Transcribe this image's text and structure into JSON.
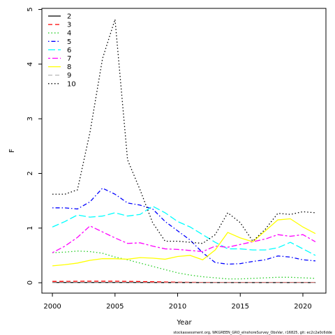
{
  "chart_data": {
    "type": "line",
    "x_label": "Year",
    "y_label": "F",
    "footer": "stockassessment.org, WKGREEN_GRO_eInshoreSurvey_ObsVar, r16825, git: ec2c2a0c6dde",
    "x": [
      2000,
      2001,
      2002,
      2003,
      2004,
      2005,
      2006,
      2007,
      2008,
      2009,
      2010,
      2011,
      2012,
      2013,
      2014,
      2015,
      2016,
      2017,
      2018,
      2019,
      2020,
      2021
    ],
    "xlim": [
      1999.16,
      2021.84
    ],
    "xticks": [
      2000,
      2005,
      2010,
      2015,
      2020
    ],
    "ylim": [
      -0.19,
      5.02
    ],
    "yticks": [
      0,
      1,
      2,
      3,
      4,
      5
    ],
    "legend": "top-left",
    "series": [
      {
        "name": "2",
        "color": "#000000",
        "dash": "",
        "values": [
          0.005,
          0.005,
          0.005,
          0.005,
          0.005,
          0.005,
          0.005,
          0.005,
          0.005,
          0.004,
          0.004,
          0.004,
          0.003,
          0.003,
          0.003,
          0.003,
          0.003,
          0.003,
          0.003,
          0.003,
          0.003,
          0.003
        ]
      },
      {
        "name": "3",
        "color": "#ff0000",
        "dash": "6,4",
        "values": [
          0.025,
          0.025,
          0.027,
          0.028,
          0.028,
          0.028,
          0.025,
          0.022,
          0.018,
          0.014,
          0.01,
          0.008,
          0.006,
          0.005,
          0.005,
          0.005,
          0.005,
          0.005,
          0.005,
          0.005,
          0.005,
          0.005
        ]
      },
      {
        "name": "4",
        "color": "#22cc22",
        "dash": "1.5,3",
        "values": [
          0.55,
          0.56,
          0.58,
          0.57,
          0.54,
          0.47,
          0.42,
          0.36,
          0.3,
          0.24,
          0.18,
          0.14,
          0.11,
          0.09,
          0.07,
          0.07,
          0.08,
          0.09,
          0.1,
          0.1,
          0.09,
          0.08
        ]
      },
      {
        "name": "5",
        "color": "#0000ff",
        "dash": "1.5,3,6,3",
        "values": [
          1.37,
          1.37,
          1.35,
          1.48,
          1.73,
          1.62,
          1.46,
          1.42,
          1.35,
          1.12,
          0.95,
          0.78,
          0.55,
          0.37,
          0.34,
          0.35,
          0.39,
          0.42,
          0.49,
          0.47,
          0.42,
          0.4
        ]
      },
      {
        "name": "6",
        "color": "#00ffff",
        "dash": "10,4",
        "values": [
          1.02,
          1.12,
          1.24,
          1.2,
          1.22,
          1.28,
          1.22,
          1.25,
          1.4,
          1.28,
          1.12,
          1.02,
          0.88,
          0.74,
          0.62,
          0.62,
          0.6,
          0.6,
          0.64,
          0.74,
          0.62,
          0.5
        ]
      },
      {
        "name": "7",
        "color": "#ff00ff",
        "dash": "3,3,8,3",
        "values": [
          0.55,
          0.67,
          0.83,
          1.04,
          0.93,
          0.82,
          0.72,
          0.73,
          0.67,
          0.62,
          0.61,
          0.59,
          0.57,
          0.67,
          0.65,
          0.7,
          0.75,
          0.8,
          0.88,
          0.85,
          0.88,
          0.75
        ]
      },
      {
        "name": "8",
        "color": "#ffff00",
        "dash": "",
        "values": [
          0.31,
          0.33,
          0.36,
          0.41,
          0.44,
          0.44,
          0.43,
          0.46,
          0.45,
          0.43,
          0.48,
          0.5,
          0.42,
          0.6,
          0.92,
          0.82,
          0.75,
          0.95,
          1.15,
          1.17,
          1.02,
          0.9
        ]
      },
      {
        "name": "9",
        "color": "#bebebe",
        "dash": "6,4",
        "values": [
          0,
          0,
          0,
          0,
          0,
          0,
          0,
          0,
          0,
          0,
          0,
          0,
          0,
          0,
          0,
          0,
          0,
          0,
          0,
          0,
          0,
          0
        ]
      },
      {
        "name": "10",
        "color": "#000000",
        "dash": "1.5,3",
        "values": [
          1.62,
          1.62,
          1.7,
          2.75,
          4.1,
          4.82,
          2.25,
          1.7,
          1.1,
          0.76,
          0.76,
          0.74,
          0.72,
          0.88,
          1.28,
          1.1,
          0.76,
          0.98,
          1.27,
          1.25,
          1.3,
          1.28
        ]
      }
    ]
  }
}
